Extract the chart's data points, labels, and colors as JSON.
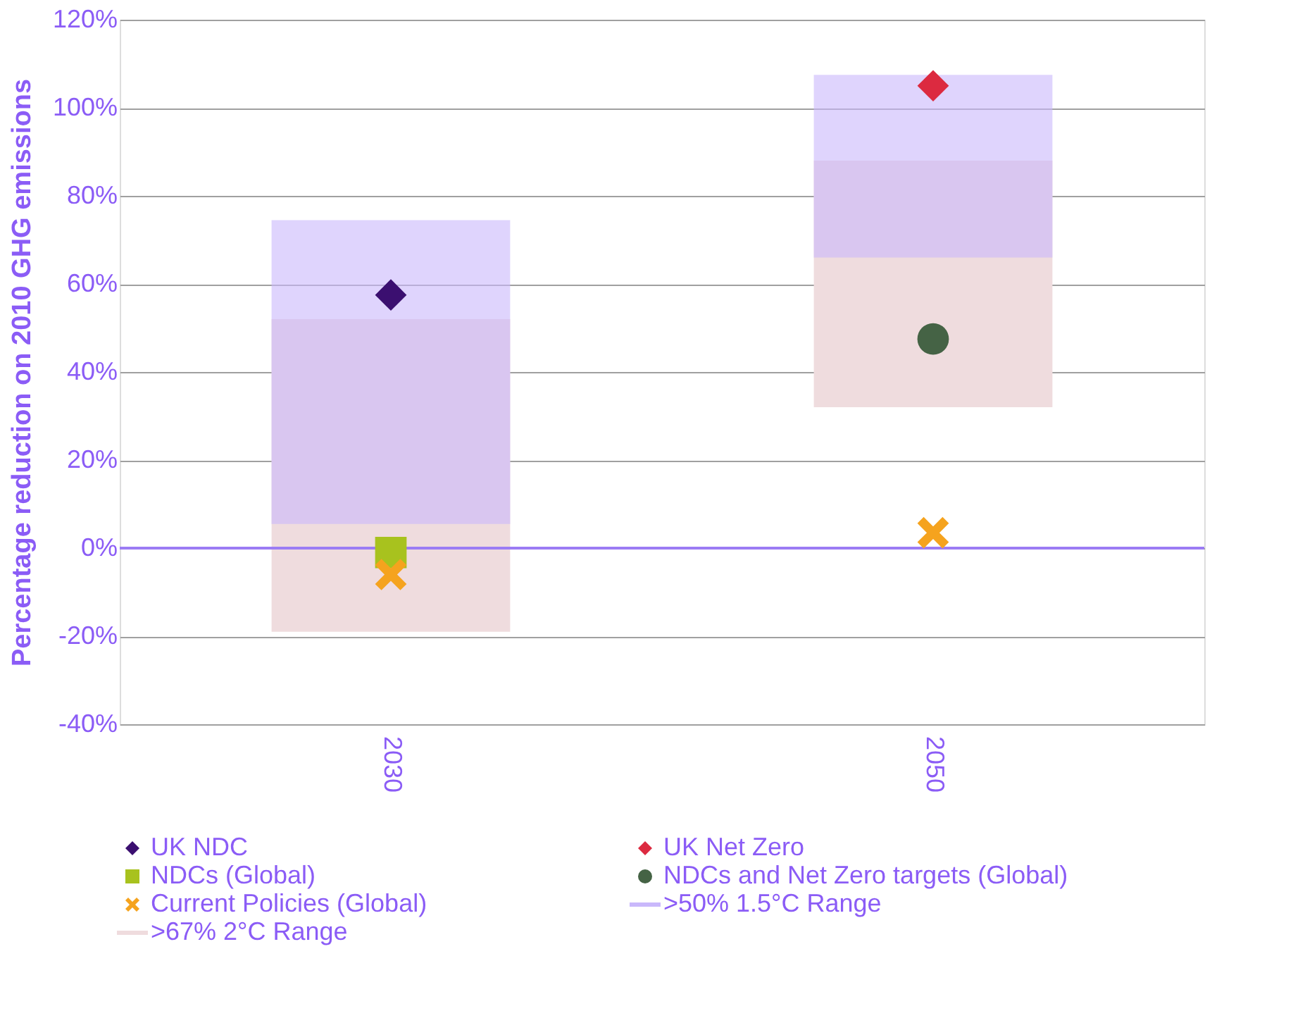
{
  "chart_data": {
    "type": "bar",
    "ylabel": "Percentage reduction on 2010 GHG emissions",
    "categories": [
      "2030",
      "2050"
    ],
    "ylim": [
      -40,
      120
    ],
    "yticks": [
      {
        "value": -40,
        "label": "-40%"
      },
      {
        "value": -20,
        "label": "-20%"
      },
      {
        "value": 0,
        "label": "0%"
      },
      {
        "value": 20,
        "label": "20%"
      },
      {
        "value": 40,
        "label": "40%"
      },
      {
        "value": 60,
        "label": "60%"
      },
      {
        "value": 80,
        "label": "80%"
      },
      {
        "value": 100,
        "label": "100%"
      },
      {
        "value": 120,
        "label": "120%"
      }
    ],
    "grid": "y",
    "legend": "bottom",
    "ref_lines": [
      {
        "axis": "y",
        "value": 0,
        "color": "#9b7cf4"
      }
    ],
    "series": [
      {
        "name": "UK NDC",
        "type": "scatter",
        "marker": "diamond",
        "color": "#3b0f70",
        "values": [
          57.5,
          null
        ]
      },
      {
        "name": "UK Net Zero",
        "type": "scatter",
        "marker": "diamond",
        "color": "#dc2a40",
        "values": [
          null,
          105
        ]
      },
      {
        "name": "NDCs (Global)",
        "type": "scatter",
        "marker": "square",
        "color": "#a8c21e",
        "values": [
          -1,
          null
        ]
      },
      {
        "name": "NDCs and Net Zero targets (Global)",
        "type": "scatter",
        "marker": "circle",
        "color": "#456345",
        "values": [
          null,
          47.5
        ]
      },
      {
        "name": "Current Policies (Global)",
        "type": "scatter",
        "marker": "cross",
        "color": "#f5a31e",
        "values": [
          -6,
          3.5
        ]
      },
      {
        "name": ">50% 1.5°C Range",
        "color": "#c9b8fb",
        "base": [
          5.5,
          66
        ],
        "values": [
          69,
          41.5
        ]
      },
      {
        "name": ">67% 2°C Range",
        "color": "#efdcde",
        "base": [
          -19,
          32
        ],
        "values": [
          71,
          56
        ]
      }
    ]
  }
}
